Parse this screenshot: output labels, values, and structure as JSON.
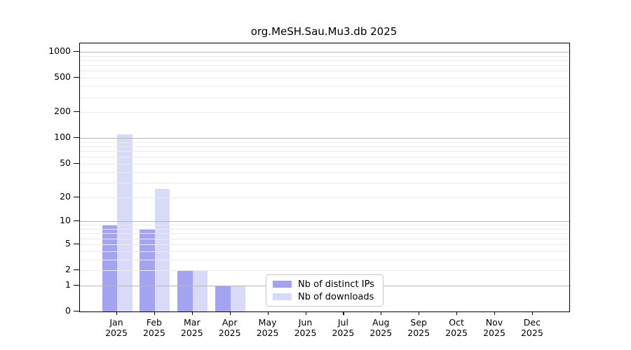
{
  "chart_data": {
    "type": "bar",
    "title": "org.MeSH.Sau.Mu3.db 2025",
    "categories": [
      "Jan 2025",
      "Feb 2025",
      "Mar 2025",
      "Apr 2025",
      "May 2025",
      "Jun 2025",
      "Jul 2025",
      "Aug 2025",
      "Sep 2025",
      "Oct 2025",
      "Nov 2025",
      "Dec 2025"
    ],
    "x_tick_months": [
      "Jan",
      "Feb",
      "Mar",
      "Apr",
      "May",
      "Jun",
      "Jul",
      "Aug",
      "Sep",
      "Oct",
      "Nov",
      "Dec"
    ],
    "x_tick_year": "2025",
    "series": [
      {
        "name": "Nb of distinct IPs",
        "color": "#a3a3f0",
        "values": [
          9,
          8,
          2,
          1,
          0,
          0,
          0,
          0,
          0,
          0,
          0,
          0
        ]
      },
      {
        "name": "Nb of downloads",
        "color": "#d9d9f8",
        "values": [
          110,
          25,
          2,
          1,
          0,
          0,
          0,
          0,
          0,
          0,
          0,
          0
        ]
      }
    ],
    "yscale": "log1p",
    "ylim": [
      0,
      1250
    ],
    "y_ticks": [
      0,
      1,
      2,
      5,
      10,
      20,
      50,
      100,
      200,
      500,
      1000
    ],
    "grid": true,
    "legend_position": "lower center"
  },
  "colors": {
    "grid_major": "#b8b8b8",
    "grid_minor": "#ebebeb",
    "spine": "#000000",
    "background": "#ffffff",
    "legend_border": "#c9c9c9"
  }
}
